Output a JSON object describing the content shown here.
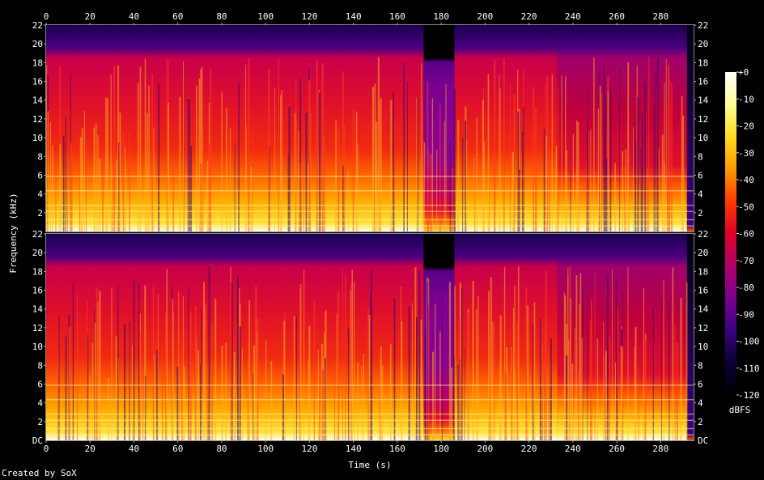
{
  "chart_data": {
    "type": "heatmap",
    "title": "",
    "xlabel": "Time (s)",
    "ylabel": "Frequency (kHz)",
    "x_ticks": [
      0,
      20,
      40,
      60,
      80,
      100,
      120,
      140,
      160,
      180,
      200,
      220,
      240,
      260,
      280
    ],
    "xlim": [
      0,
      295
    ],
    "ylim_khz": [
      0,
      22
    ],
    "y_ticks_khz": [
      2,
      4,
      6,
      8,
      10,
      12,
      14,
      16,
      18,
      20,
      22
    ],
    "y_zero_label": "DC",
    "channels": 2,
    "colorbar": {
      "label": "dBFS",
      "ticks": [
        "+0",
        "-10",
        "-20",
        "-30",
        "-40",
        "-50",
        "-60",
        "-70",
        "-80",
        "-90",
        "-100",
        "-110",
        "-120"
      ],
      "range": [
        -120,
        0
      ],
      "stops": [
        "#000000",
        "#0a0036",
        "#3c0080",
        "#7a0090",
        "#b0006a",
        "#e0002a",
        "#ff3a00",
        "#ff9a00",
        "#ffdc1e",
        "#ffff96",
        "#ffffff"
      ]
    },
    "regions": [
      {
        "t": [
          0,
          172
        ],
        "description": "",
        "hf_cut_khz": 20,
        "energy": "high"
      },
      {
        "t": [
          172,
          186
        ],
        "hf_cut_khz": 18.5,
        "energy": "low"
      },
      {
        "t": [
          186,
          233
        ],
        "hf_cut_khz": 20,
        "energy": "high"
      },
      {
        "t": [
          233,
          292
        ],
        "hf_cut_khz": 20,
        "energy": "medium"
      },
      {
        "t": [
          292,
          295
        ],
        "hf_cut_khz": 0,
        "energy": "silence"
      }
    ]
  },
  "credit": "Created by SoX"
}
